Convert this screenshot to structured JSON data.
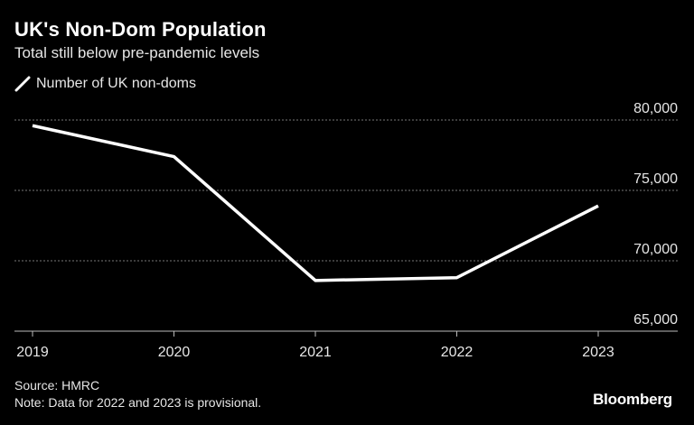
{
  "title": "UK's Non-Dom Population",
  "subtitle": "Total still below pre-pandemic levels",
  "legend": {
    "label": "Number of UK non-doms",
    "icon": "diagonal-line-icon"
  },
  "colors": {
    "background": "#000000",
    "line": "#ffffff",
    "grid": "#777777",
    "text": "#e6e6e6"
  },
  "chart_data": {
    "type": "line",
    "title": "UK's Non-Dom Population",
    "subtitle": "Total still below pre-pandemic levels",
    "x": [
      "2019",
      "2020",
      "2021",
      "2022",
      "2023"
    ],
    "series": [
      {
        "name": "Number of UK non-doms",
        "values": [
          79600,
          77400,
          68600,
          68800,
          73900
        ]
      }
    ],
    "xlabel": "",
    "ylabel": "",
    "ylim": [
      65000,
      80000
    ],
    "yticks": [
      80000,
      75000,
      70000,
      65000
    ],
    "ytick_labels": [
      "80,000",
      "75,000",
      "70,000",
      "65,000"
    ],
    "xtick_labels": [
      "2019",
      "2020",
      "2021",
      "2022",
      "2023"
    ],
    "grid": true,
    "y_axis_position": "right",
    "legend_position": "top-left"
  },
  "footer": {
    "source": "Source: HMRC",
    "note": "Note: Data for 2022 and 2023 is provisional.",
    "brand": "Bloomberg"
  }
}
